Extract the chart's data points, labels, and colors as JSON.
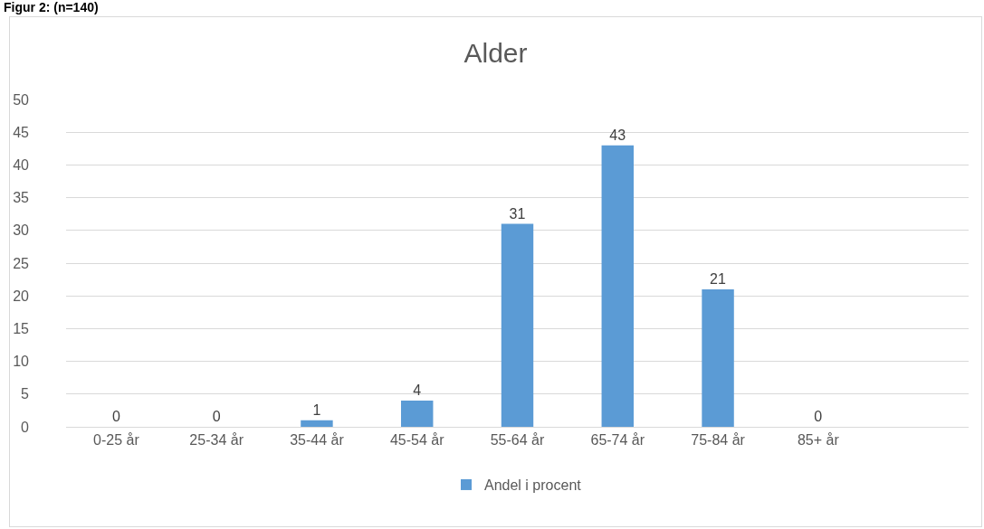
{
  "chart_data": {
    "type": "bar",
    "title": "Alder",
    "annotations": [
      "Figur 2: (n=140)"
    ],
    "categories": [
      "0-25 år",
      "25-34 år",
      "35-44 år",
      "45-54 år",
      "55-64 år",
      "65-74 år",
      "75-84 år",
      "85+ år",
      null
    ],
    "series": [
      {
        "name": "Andel i procent",
        "color": "#5b9bd5",
        "values": [
          0,
          0,
          1,
          4,
          31,
          43,
          21,
          0,
          null
        ]
      }
    ],
    "ylim": [
      0,
      50
    ],
    "yticks": [
      0,
      5,
      10,
      15,
      20,
      25,
      30,
      35,
      40,
      45,
      50
    ],
    "grid": "y",
    "legend": "bottom",
    "data_labels": true
  }
}
